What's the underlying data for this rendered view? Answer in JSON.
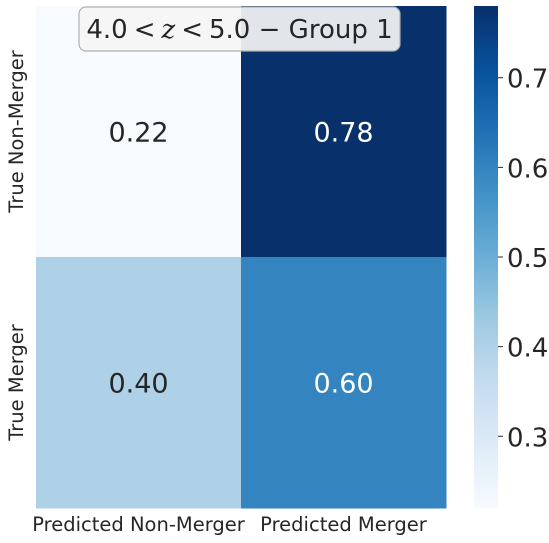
{
  "chart_data": {
    "type": "heatmap",
    "title": "4.0 < z < 5.0 − Group 1",
    "title_parts": {
      "lower": "4.0",
      "lt1": "<",
      "var": "z",
      "lt2": "<",
      "upper": "5.0",
      "rest": " − Group 1"
    },
    "row_labels": [
      "True Non-Merger",
      "True Merger"
    ],
    "col_labels": [
      "Predicted Non-Merger",
      "Predicted Merger"
    ],
    "values": [
      [
        0.22,
        0.78
      ],
      [
        0.4,
        0.6
      ]
    ],
    "cell_labels": [
      [
        "0.22",
        "0.78"
      ],
      [
        "0.40",
        "0.60"
      ]
    ],
    "colorbar": {
      "min": 0.22,
      "max": 0.78,
      "ticks": [
        0.3,
        0.4,
        0.5,
        0.6,
        0.7
      ],
      "tick_labels": [
        "0.3",
        "0.4",
        "0.5",
        "0.6",
        "0.7"
      ],
      "colormap": "Blues"
    },
    "colors": {
      "low": "#f7fbff",
      "high": "#08306b",
      "text_dark": "#262626",
      "text_light": "#ffffff"
    },
    "grid": false
  }
}
